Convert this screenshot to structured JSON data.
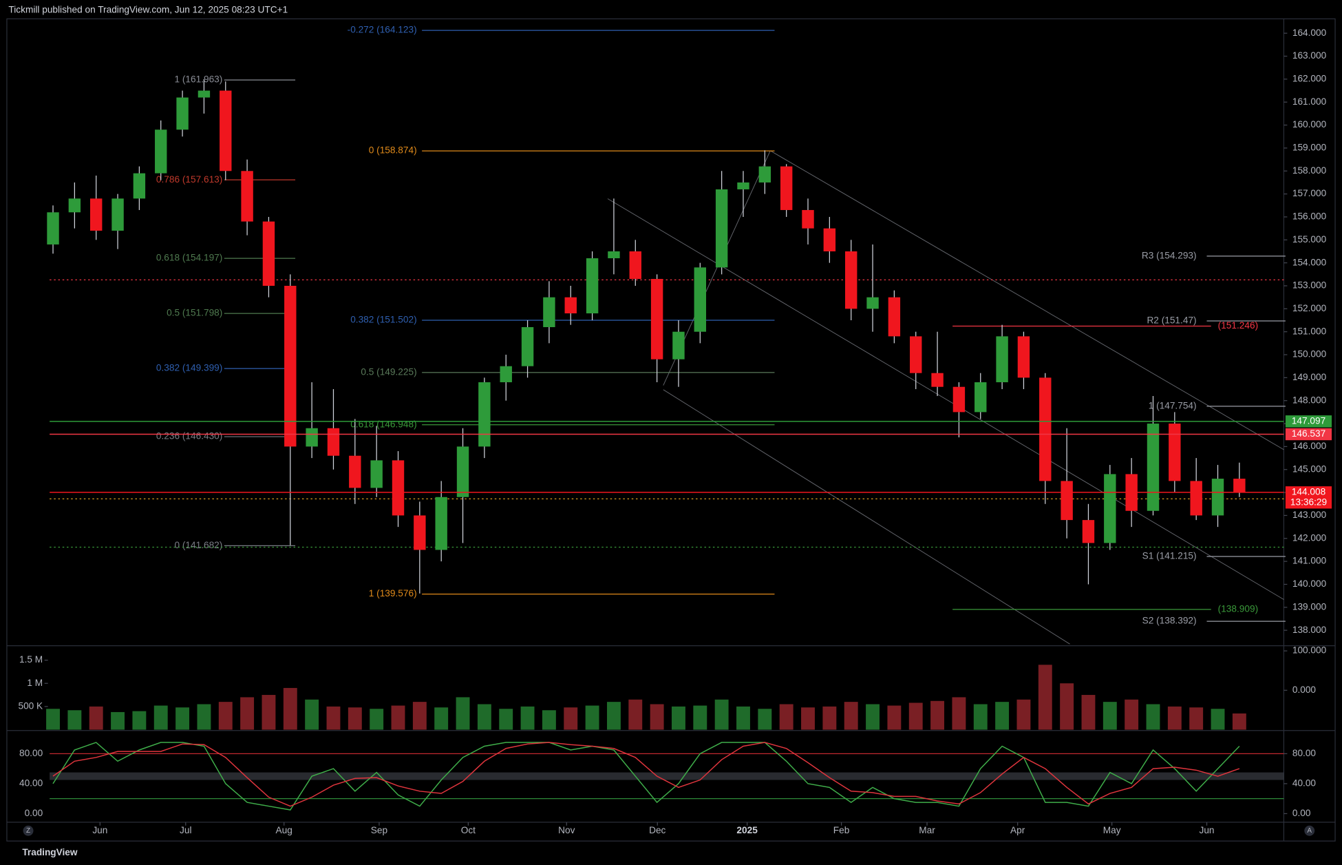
{
  "chart_data": {
    "type": "candlestick",
    "header": "Tickmill published on TradingView.com, Jun 12, 2025 08:23 UTC+1",
    "brand": "TradingView",
    "scale_buttons": [
      "Z",
      "A"
    ],
    "up_color": "#2e9b3a",
    "down_color": "#f0161e",
    "open": [
      154.8,
      156.2,
      156.8,
      155.4,
      156.8,
      157.9,
      159.8,
      161.2,
      161.5,
      158.0,
      155.8,
      153.0,
      146.0,
      146.8,
      145.6,
      144.2,
      145.4,
      143.0,
      141.5,
      143.8,
      146.0,
      148.8,
      149.5,
      151.2,
      152.5,
      151.8,
      154.2,
      154.5,
      153.3,
      149.8,
      151.0,
      153.8,
      157.2,
      157.5,
      158.2,
      156.3,
      155.5,
      154.5,
      152.0,
      152.5,
      150.8,
      149.2,
      148.6,
      147.5,
      148.8,
      150.8,
      149.0,
      144.5,
      142.8,
      141.8,
      144.8,
      143.2,
      147.0,
      144.5,
      143.0,
      144.6
    ],
    "high": [
      156.5,
      157.5,
      157.8,
      157.0,
      158.2,
      160.2,
      161.5,
      162.0,
      161.9,
      158.5,
      156.0,
      153.5,
      148.8,
      148.5,
      147.2,
      146.9,
      145.8,
      143.6,
      144.5,
      146.8,
      149.0,
      150.0,
      151.5,
      153.2,
      153.0,
      154.5,
      156.8,
      155.0,
      153.5,
      151.5,
      154.0,
      158.0,
      158.0,
      158.9,
      158.3,
      156.8,
      156.0,
      155.0,
      154.8,
      152.8,
      151.0,
      151.0,
      148.8,
      149.2,
      151.3,
      151.0,
      149.2,
      146.8,
      143.5,
      145.2,
      145.5,
      148.2,
      147.5,
      145.5,
      145.2,
      145.3
    ],
    "low": [
      154.4,
      155.5,
      155.0,
      154.6,
      156.3,
      157.6,
      159.5,
      160.5,
      157.6,
      155.2,
      152.5,
      141.7,
      145.5,
      145.0,
      143.5,
      143.8,
      142.5,
      139.6,
      141.0,
      141.8,
      145.5,
      148.0,
      149.0,
      150.5,
      151.3,
      151.5,
      153.5,
      153.0,
      148.8,
      148.6,
      150.5,
      153.5,
      156.0,
      157.0,
      156.0,
      154.8,
      154.0,
      151.5,
      151.0,
      150.5,
      148.5,
      148.2,
      146.4,
      147.2,
      148.5,
      148.5,
      143.5,
      142.0,
      140.0,
      141.5,
      142.5,
      143.0,
      144.0,
      142.8,
      142.5,
      143.8
    ],
    "close": [
      156.2,
      156.8,
      155.4,
      156.8,
      157.9,
      159.8,
      161.2,
      161.5,
      158.0,
      155.8,
      153.0,
      146.0,
      146.8,
      145.6,
      144.2,
      145.4,
      143.0,
      141.5,
      143.8,
      146.0,
      148.8,
      149.5,
      151.2,
      152.5,
      151.8,
      154.2,
      154.5,
      153.3,
      149.8,
      151.0,
      153.8,
      157.2,
      157.5,
      158.2,
      156.3,
      155.5,
      154.5,
      152.0,
      152.5,
      150.8,
      149.2,
      148.6,
      147.5,
      148.8,
      150.8,
      149.0,
      144.5,
      142.8,
      141.8,
      144.8,
      143.2,
      147.0,
      144.5,
      143.0,
      144.6,
      144.008
    ],
    "xlim": [
      -2.14,
      57.06
    ],
    "xticks": [
      {
        "value": 2.18,
        "label": "Jun"
      },
      {
        "value": 6.15,
        "label": "Jul"
      },
      {
        "value": 10.71,
        "label": "Aug"
      },
      {
        "value": 15.12,
        "label": "Sep"
      },
      {
        "value": 19.25,
        "label": "Oct"
      },
      {
        "value": 23.81,
        "label": "Nov"
      },
      {
        "value": 28.02,
        "label": "Dec"
      },
      {
        "value": 32.18,
        "label": "2025"
      },
      {
        "value": 36.55,
        "label": "Feb"
      },
      {
        "value": 40.52,
        "label": "Mar"
      },
      {
        "value": 44.72,
        "label": "Apr"
      },
      {
        "value": 49.09,
        "label": "May"
      },
      {
        "value": 53.49,
        "label": "Jun"
      }
    ],
    "ylim": [
      137.4,
      164.7
    ],
    "yticks": [
      {
        "value": 138,
        "label": "138.000"
      },
      {
        "value": 139,
        "label": "139.000"
      },
      {
        "value": 140,
        "label": "140.000"
      },
      {
        "value": 141,
        "label": "141.000"
      },
      {
        "value": 142,
        "label": "142.000"
      },
      {
        "value": 143,
        "label": "143.000"
      },
      {
        "value": 144,
        "label": "144.000"
      },
      {
        "value": 145,
        "label": "145.000"
      },
      {
        "value": 146,
        "label": "146.000"
      },
      {
        "value": 147,
        "label": "147.000"
      },
      {
        "value": 148,
        "label": "148.000"
      },
      {
        "value": 149,
        "label": "149.000"
      },
      {
        "value": 150,
        "label": "150.000"
      },
      {
        "value": 151,
        "label": "151.000"
      },
      {
        "value": 152,
        "label": "152.000"
      },
      {
        "value": 153,
        "label": "153.000"
      },
      {
        "value": 154,
        "label": "154.000"
      },
      {
        "value": 155,
        "label": "155.000"
      },
      {
        "value": 156,
        "label": "156.000"
      },
      {
        "value": 157,
        "label": "157.000"
      },
      {
        "value": 158,
        "label": "158.000"
      },
      {
        "value": 159,
        "label": "159.000"
      },
      {
        "value": 160,
        "label": "160.000"
      },
      {
        "value": 161,
        "label": "161.000"
      },
      {
        "value": 162,
        "label": "162.000"
      },
      {
        "value": 163,
        "label": "163.000"
      },
      {
        "value": 164,
        "label": "164.000"
      }
    ],
    "levels": [
      {
        "label": "1 (161.963)",
        "value": 161.963,
        "color": "#8a8d96"
      },
      {
        "label": "0.786 (157.613)",
        "value": 157.613,
        "color": "#c0392b"
      },
      {
        "label": "0.618 (154.197)",
        "value": 154.197,
        "color": "#4f7a4f"
      },
      {
        "label": "0.5 (151.798)",
        "value": 151.798,
        "color": "#4f7a4f"
      },
      {
        "label": "0.382 (149.399)",
        "value": 149.399,
        "color": "#2f5fb0"
      },
      {
        "label": "0.236 (146.430)",
        "value": 146.43,
        "color": "#7a7d86"
      },
      {
        "label": "0 (141.682)",
        "value": 141.682,
        "color": "#7a7d86"
      },
      {
        "label": "-0.272 (164.123)",
        "value": 164.123,
        "color": "#2f5fb0"
      },
      {
        "label": "0 (158.874)",
        "value": 158.874,
        "color": "#e08a1a"
      },
      {
        "label": "0.382 (151.502)",
        "value": 151.502,
        "color": "#2f5fb0"
      },
      {
        "label": "0.5 (149.225)",
        "value": 149.225,
        "color": "#5a7a5a"
      },
      {
        "label": "0.618 (146.948)",
        "value": 146.948,
        "color": "#3a9a3a"
      },
      {
        "label": "1 (139.576)",
        "value": 139.576,
        "color": "#e08a1a"
      },
      {
        "label": "R3 (154.293)",
        "value": 154.293,
        "color": "#9a9da6"
      },
      {
        "label": "R2 (151.47)",
        "value": 151.47,
        "color": "#9a9da6"
      },
      {
        "label": "1 (147.754)",
        "value": 147.754,
        "color": "#9a9da6"
      },
      {
        "label": "S1 (141.215)",
        "value": 141.215,
        "color": "#9a9da6"
      },
      {
        "label": "S2 (138.392)",
        "value": 138.392,
        "color": "#9a9da6"
      },
      {
        "label": "(151.246)",
        "value": 151.246,
        "color": "#f23645"
      },
      {
        "label": "(138.909)",
        "value": 138.909,
        "color": "#3a9a3a"
      },
      {
        "value": 153.26,
        "color": "#f23645",
        "dash": true
      },
      {
        "value": 141.62,
        "color": "#3a9a3a",
        "dash": true
      },
      {
        "value": 143.72,
        "color": "#e0a020",
        "dash": true
      }
    ],
    "price_labels": [
      {
        "label": "147.097",
        "value": 147.097,
        "color": "#2e9b3a"
      },
      {
        "label": "146.537",
        "value": 146.537,
        "color": "#f23645"
      },
      {
        "label": "144.008",
        "value": 144.008,
        "color": "#f0161e",
        "sub": "13:36:29"
      }
    ],
    "volume": {
      "values": [
        450000,
        420000,
        500000,
        380000,
        400000,
        520000,
        480000,
        550000,
        600000,
        700000,
        750000,
        900000,
        650000,
        500000,
        480000,
        450000,
        520000,
        600000,
        480000,
        700000,
        550000,
        450000,
        500000,
        420000,
        480000,
        520000,
        600000,
        650000,
        550000,
        500000,
        520000,
        650000,
        500000,
        450000,
        550000,
        480000,
        500000,
        600000,
        550000,
        520000,
        580000,
        620000,
        700000,
        550000,
        600000,
        650000,
        1400000,
        1000000,
        750000,
        600000,
        650000,
        550000,
        500000,
        480000,
        450000,
        350000
      ],
      "ylim": [
        0,
        1700000
      ],
      "yticks": [
        {
          "value": 500000,
          "label": "500 K"
        },
        {
          "value": 1000000,
          "label": "1 M"
        },
        {
          "value": 1500000,
          "label": "1.5 M"
        }
      ],
      "y2lim": [
        -100,
        100
      ],
      "y2ticks": [
        {
          "value": 100,
          "label": "100.000"
        },
        {
          "value": 0,
          "label": "0.000"
        }
      ]
    },
    "stochastic": {
      "ylim": [
        -11.4,
        102.9
      ],
      "yticks": [
        {
          "value": 0,
          "label": "0.00"
        },
        {
          "value": 40,
          "label": "40.00"
        },
        {
          "value": 80,
          "label": "80.00"
        }
      ],
      "hlines": [
        {
          "value": 80,
          "color": "#c0282f"
        },
        {
          "value": 20,
          "color": "#2e8b3a"
        }
      ],
      "band": [
        45,
        55
      ],
      "series": [
        {
          "color": "#3fae4a",
          "values": [
            40,
            85,
            95,
            70,
            85,
            95,
            95,
            90,
            40,
            15,
            10,
            5,
            50,
            60,
            30,
            55,
            25,
            10,
            45,
            75,
            90,
            95,
            95,
            95,
            85,
            90,
            85,
            50,
            15,
            40,
            80,
            95,
            95,
            95,
            70,
            40,
            35,
            15,
            35,
            20,
            15,
            15,
            10,
            60,
            90,
            75,
            15,
            15,
            10,
            55,
            40,
            85,
            60,
            30,
            60,
            90
          ]
        },
        {
          "color": "#e0353d",
          "values": [
            50,
            70,
            75,
            83,
            83,
            83,
            93,
            92,
            75,
            48,
            22,
            10,
            22,
            38,
            47,
            48,
            37,
            30,
            27,
            43,
            70,
            87,
            93,
            95,
            92,
            90,
            87,
            75,
            50,
            35,
            45,
            72,
            90,
            95,
            87,
            68,
            48,
            30,
            28,
            23,
            23,
            17,
            13,
            28,
            53,
            75,
            60,
            35,
            13,
            27,
            35,
            60,
            62,
            58,
            50,
            60
          ]
        }
      ]
    }
  }
}
